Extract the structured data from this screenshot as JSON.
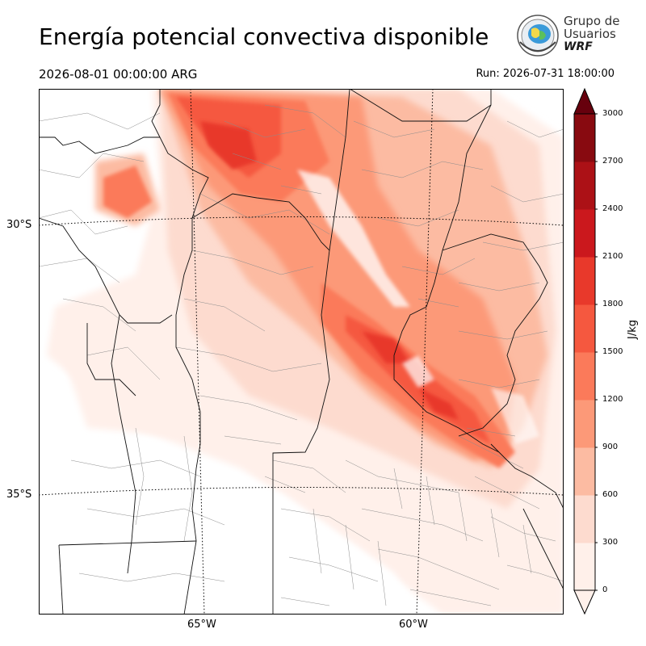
{
  "header": {
    "title": "Energía potencial convectiva disponible",
    "valid_time": "2026-08-01 00:00:00 ARG",
    "run_time": "Run: 2026-07-31 18:00:00"
  },
  "logo": {
    "line1": "Grupo de",
    "line2": "Usuarios",
    "brand": "WRF"
  },
  "map": {
    "lat_labels": [
      "30°S",
      "35°S"
    ],
    "lon_labels": [
      "65°W",
      "60°W"
    ]
  },
  "colorbar": {
    "unit": "J/kg",
    "ticks": [
      "0",
      "300",
      "600",
      "900",
      "1200",
      "1500",
      "1800",
      "2100",
      "2400",
      "2700",
      "3000"
    ],
    "colors": [
      "#fff0ea",
      "#fddbcf",
      "#fcbba2",
      "#fc9978",
      "#fb7a5a",
      "#f5583f",
      "#e8392b",
      "#cb181d",
      "#ac1116",
      "#880a10",
      "#67000d"
    ]
  }
}
